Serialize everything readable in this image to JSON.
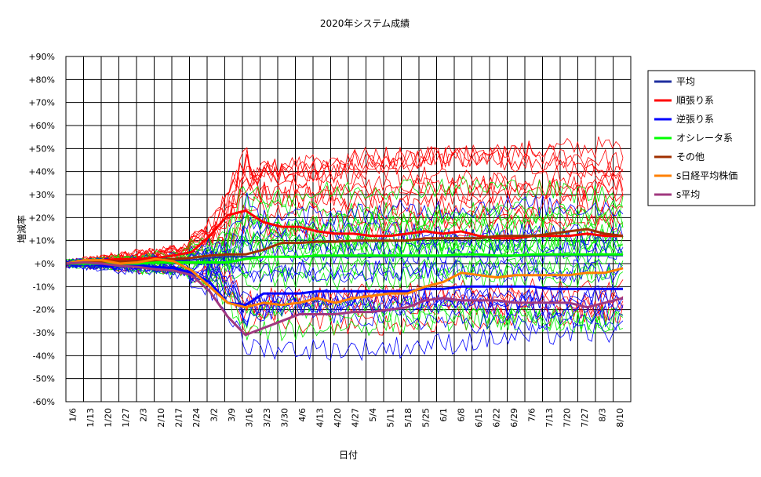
{
  "chart_data": {
    "type": "line",
    "title": "2020年システム成績",
    "xlabel": "日付",
    "ylabel": "増減率",
    "ylim": [
      -60,
      90
    ],
    "y_ticks": [
      90,
      80,
      70,
      60,
      50,
      40,
      30,
      20,
      10,
      0,
      -10,
      -20,
      -30,
      -40,
      -50,
      -60
    ],
    "y_tick_labels": [
      "+90%",
      "+80%",
      "+70%",
      "+60%",
      "+50%",
      "+40%",
      "+30%",
      "+20%",
      "+10%",
      "+0%",
      "-10%",
      "-20%",
      "-30%",
      "-40%",
      "-50%",
      "-60%"
    ],
    "x_tick_labels": [
      "1/6",
      "1/13",
      "1/20",
      "1/27",
      "2/3",
      "2/10",
      "2/17",
      "2/24",
      "3/2",
      "3/9",
      "3/16",
      "3/23",
      "3/30",
      "4/6",
      "4/13",
      "4/20",
      "4/27",
      "5/4",
      "5/11",
      "5/18",
      "5/25",
      "6/1",
      "6/8",
      "6/15",
      "6/22",
      "6/29",
      "7/6",
      "7/13",
      "7/20",
      "7/27",
      "8/3",
      "8/10"
    ],
    "grid": true,
    "legend_position": "right",
    "series": [
      {
        "name": "平均",
        "color": "#1f2f9f",
        "width": 2,
        "values": [
          0,
          0.5,
          0.8,
          0.5,
          0.5,
          1,
          1.2,
          1.5,
          2.5,
          3,
          3,
          3,
          3,
          3,
          3,
          3,
          3,
          3,
          3,
          3,
          3,
          3,
          3,
          3,
          3,
          3.2,
          3.3,
          3.5,
          3.5,
          3.5,
          3.5,
          3.5
        ]
      },
      {
        "name": "順張り系",
        "color": "#ff0000",
        "width": 3,
        "values": [
          0,
          1,
          1.5,
          2,
          2,
          2.5,
          3.5,
          5,
          12,
          21,
          23,
          18,
          16,
          16,
          14,
          13,
          13,
          12,
          12,
          13,
          14,
          13,
          14,
          12,
          11,
          11,
          12,
          12,
          12,
          13,
          12,
          12
        ]
      },
      {
        "name": "逆張り系",
        "color": "#0000ff",
        "width": 3,
        "values": [
          0,
          0.5,
          -1,
          -1,
          -1,
          -1.5,
          -2,
          -4,
          -8,
          -17,
          -18,
          -13,
          -13,
          -13,
          -12,
          -12,
          -12,
          -12,
          -12,
          -12,
          -11,
          -11,
          -10,
          -10,
          -10,
          -10,
          -10,
          -11,
          -11,
          -11,
          -11,
          -11
        ]
      },
      {
        "name": "オシレータ系",
        "color": "#00ff00",
        "width": 3,
        "values": [
          0,
          0,
          0,
          0,
          0,
          0.5,
          0.5,
          0.5,
          0.5,
          0.5,
          2,
          3,
          3,
          3,
          3.5,
          3.5,
          3.5,
          3.5,
          3.5,
          3.5,
          3.5,
          3.5,
          4,
          4,
          3.5,
          3.5,
          4,
          4,
          4,
          4,
          4,
          4
        ]
      },
      {
        "name": "その他",
        "color": "#a03000",
        "width": 3,
        "values": [
          0,
          0.5,
          1,
          1,
          1,
          1.5,
          2,
          2.5,
          3.5,
          4,
          4,
          6,
          9,
          9,
          9.5,
          9.5,
          10,
          10,
          10,
          10,
          11,
          11,
          11,
          11,
          12,
          12,
          12,
          13,
          14,
          15,
          13,
          12
        ]
      },
      {
        "name": "s日経平均株価",
        "color": "#ff8000",
        "width": 3,
        "values": [
          0,
          1.5,
          1.5,
          0,
          0.5,
          2,
          1,
          -3,
          -10,
          -17,
          -19,
          -17,
          -18,
          -17,
          -15,
          -17,
          -15,
          -14,
          -13,
          -13,
          -10,
          -8,
          -4,
          -5,
          -6,
          -5,
          -5,
          -5,
          -5,
          -4,
          -4,
          -2
        ]
      },
      {
        "name": "s平均",
        "color": "#a0387f",
        "width": 3,
        "values": [
          0,
          0.5,
          0,
          -1,
          -1.5,
          -2.5,
          -3,
          -5,
          -12,
          -23,
          -31,
          -28,
          -25,
          -22,
          -22,
          -22,
          -21,
          -21,
          -20,
          -19,
          -16,
          -15,
          -16,
          -16,
          -16,
          -17,
          -17,
          -17,
          -17,
          -19,
          -17,
          -15
        ]
      }
    ]
  }
}
